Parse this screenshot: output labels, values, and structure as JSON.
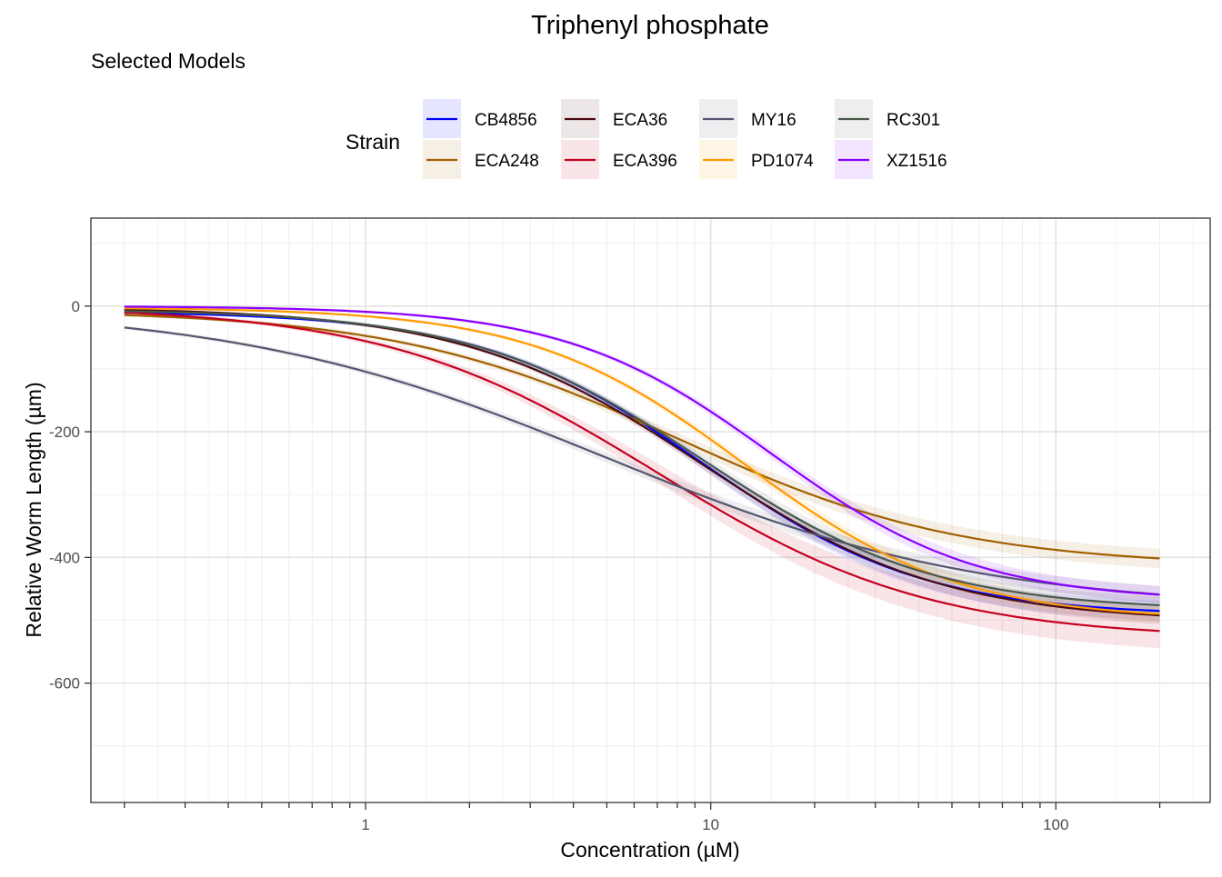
{
  "chart_data": {
    "type": "line",
    "title": "Triphenyl phosphate",
    "subtitle": "Selected Models",
    "xlabel": "Concentration (µM)",
    "ylabel": "Relative Worm Length (µm)",
    "x_scale": "log10",
    "xlim": [
      0.16,
      280
    ],
    "ylim": [
      -790,
      140
    ],
    "x_tick_labels": [
      {
        "value": 1,
        "label": "1"
      },
      {
        "value": 10,
        "label": "10"
      },
      {
        "value": 100,
        "label": "100"
      }
    ],
    "y_tick_labels": [
      {
        "value": 0,
        "label": "0"
      },
      {
        "value": -200,
        "label": "-200"
      },
      {
        "value": -400,
        "label": "-400"
      },
      {
        "value": -600,
        "label": "-600"
      }
    ],
    "x_range": [
      0.2,
      200
    ],
    "legend": {
      "title": "Strain",
      "position": "top"
    },
    "series": [
      {
        "name": "CB4856",
        "color": "#0000ff",
        "top": -8,
        "bottom": -493,
        "ec50": 9.5,
        "hill": 1.35,
        "ci": 14
      },
      {
        "name": "ECA248",
        "color": "#a06000",
        "top": -6,
        "bottom": -415,
        "ec50": 8.0,
        "hill": 1.05,
        "ci": 14
      },
      {
        "name": "ECA36",
        "color": "#4a0a12",
        "top": -2,
        "bottom": -503,
        "ec50": 9.5,
        "hill": 1.25,
        "ci": 12
      },
      {
        "name": "ECA396",
        "color": "#c4001f",
        "top": 0,
        "bottom": -530,
        "ec50": 7.0,
        "hill": 1.1,
        "ci": 26
      },
      {
        "name": "MY16",
        "color": "#555570",
        "top": 0,
        "bottom": -483,
        "ec50": 5.0,
        "hill": 0.8,
        "ci": 12
      },
      {
        "name": "PD1074",
        "color": "#ff9a00",
        "top": -2,
        "bottom": -500,
        "ec50": 12.5,
        "hill": 1.4,
        "ci": 12
      },
      {
        "name": "RC301",
        "color": "#4a5a4a",
        "top": -5,
        "bottom": -485,
        "ec50": 9.5,
        "hill": 1.3,
        "ci": 12
      },
      {
        "name": "XZ1516",
        "color": "#8a00ff",
        "top": 0,
        "bottom": -470,
        "ec50": 15.0,
        "hill": 1.45,
        "ci": 12
      }
    ],
    "grid": true
  }
}
